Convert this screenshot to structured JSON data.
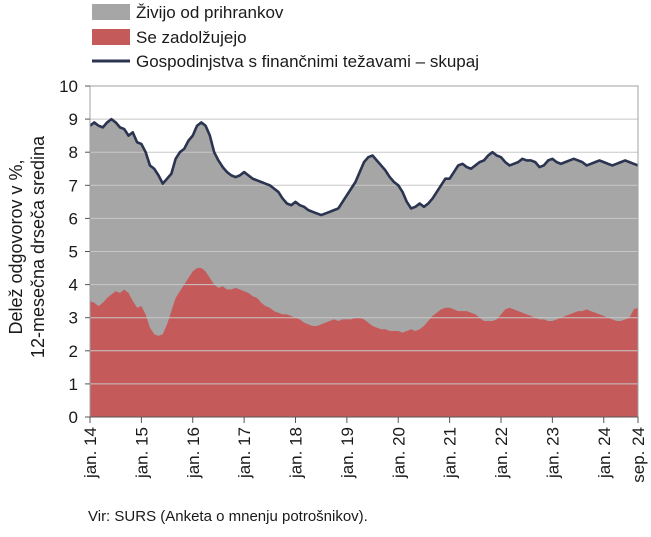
{
  "legend": [
    {
      "label": "Živijo od prihrankov",
      "color": "#a6a6a6",
      "kind": "area"
    },
    {
      "label": "Se zadolžujejo",
      "color": "#c55a5a",
      "kind": "area"
    },
    {
      "label": "Gospodinjstva s finančnimi težavami – skupaj",
      "color": "#2b3450",
      "kind": "line"
    }
  ],
  "source": "Vir: SURS (Anketa o mnenju potrošnikov).",
  "chart_data": {
    "type": "area",
    "ylabel_line1": "Delež odgovorov v %,",
    "ylabel_line2": "12-mesečna drseča sredina",
    "xlabel": "",
    "ylim": [
      0,
      10
    ],
    "yticks": [
      "0",
      "1",
      "2",
      "3",
      "4",
      "5",
      "6",
      "7",
      "8",
      "9",
      "10"
    ],
    "grid": true,
    "legend_position": "top-left",
    "x_tick_labels": [
      {
        "label": "jan. 14",
        "index": 0
      },
      {
        "label": "jan. 15",
        "index": 12
      },
      {
        "label": "jan. 16",
        "index": 24
      },
      {
        "label": "jan. 17",
        "index": 36
      },
      {
        "label": "jan. 18",
        "index": 48
      },
      {
        "label": "jan. 19",
        "index": 60
      },
      {
        "label": "jan. 20",
        "index": 72
      },
      {
        "label": "jan. 21",
        "index": 84
      },
      {
        "label": "jan. 22",
        "index": 96
      },
      {
        "label": "jan. 23",
        "index": 108
      },
      {
        "label": "jan. 24",
        "index": 120
      },
      {
        "label": "sep. 24",
        "index": 128
      }
    ],
    "period": "jan. 2014 – sep. 2024, monthly",
    "series": [
      {
        "name": "Gospodinjstva s finančnimi težavami – skupaj",
        "kind": "line",
        "color": "#2b3450",
        "values": [
          8.8,
          8.9,
          8.8,
          8.75,
          8.9,
          9.0,
          8.9,
          8.75,
          8.7,
          8.5,
          8.6,
          8.3,
          8.25,
          8.0,
          7.6,
          7.5,
          7.3,
          7.05,
          7.2,
          7.35,
          7.8,
          8.0,
          8.1,
          8.35,
          8.5,
          8.8,
          8.9,
          8.8,
          8.5,
          8.0,
          7.75,
          7.55,
          7.4,
          7.3,
          7.25,
          7.3,
          7.4,
          7.3,
          7.2,
          7.15,
          7.1,
          7.05,
          7.0,
          6.9,
          6.8,
          6.6,
          6.45,
          6.4,
          6.5,
          6.4,
          6.35,
          6.25,
          6.2,
          6.15,
          6.1,
          6.15,
          6.2,
          6.25,
          6.3,
          6.5,
          6.7,
          6.9,
          7.1,
          7.4,
          7.7,
          7.85,
          7.9,
          7.75,
          7.6,
          7.45,
          7.25,
          7.1,
          7.0,
          6.8,
          6.5,
          6.3,
          6.35,
          6.45,
          6.35,
          6.45,
          6.6,
          6.8,
          7.0,
          7.2,
          7.2,
          7.4,
          7.6,
          7.65,
          7.55,
          7.5,
          7.6,
          7.7,
          7.75,
          7.9,
          8.0,
          7.9,
          7.85,
          7.7,
          7.6,
          7.65,
          7.7,
          7.8,
          7.75,
          7.75,
          7.7,
          7.55,
          7.6,
          7.75,
          7.8,
          7.7,
          7.65,
          7.7,
          7.75,
          7.8,
          7.75,
          7.7,
          7.6,
          7.65,
          7.7,
          7.75,
          7.7,
          7.65,
          7.6,
          7.65,
          7.7,
          7.75,
          7.7,
          7.65,
          7.6
        ]
      },
      {
        "name": "Se zadolžujejo",
        "kind": "area",
        "color": "#c55a5a",
        "values": [
          3.5,
          3.45,
          3.35,
          3.45,
          3.6,
          3.7,
          3.8,
          3.75,
          3.85,
          3.75,
          3.5,
          3.3,
          3.35,
          3.1,
          2.7,
          2.5,
          2.45,
          2.5,
          2.8,
          3.2,
          3.6,
          3.8,
          4.0,
          4.2,
          4.4,
          4.5,
          4.5,
          4.4,
          4.2,
          4.0,
          3.9,
          3.95,
          3.85,
          3.85,
          3.9,
          3.85,
          3.8,
          3.75,
          3.65,
          3.6,
          3.45,
          3.35,
          3.3,
          3.2,
          3.15,
          3.1,
          3.1,
          3.05,
          3.0,
          2.95,
          2.85,
          2.8,
          2.75,
          2.75,
          2.8,
          2.85,
          2.9,
          2.95,
          2.9,
          2.95,
          2.95,
          2.95,
          3.0,
          3.0,
          2.95,
          2.85,
          2.75,
          2.7,
          2.65,
          2.65,
          2.6,
          2.6,
          2.6,
          2.55,
          2.6,
          2.65,
          2.6,
          2.65,
          2.75,
          2.9,
          3.05,
          3.15,
          3.25,
          3.3,
          3.3,
          3.25,
          3.2,
          3.2,
          3.2,
          3.15,
          3.1,
          3.0,
          2.9,
          2.9,
          2.9,
          2.95,
          3.1,
          3.25,
          3.3,
          3.25,
          3.2,
          3.15,
          3.1,
          3.05,
          3.0,
          2.95,
          2.95,
          2.9,
          2.9,
          2.95,
          3.0,
          3.05,
          3.1,
          3.15,
          3.2,
          3.2,
          3.25,
          3.2,
          3.15,
          3.1,
          3.05,
          3.0,
          2.95,
          2.9,
          2.9,
          2.95,
          3.0,
          3.25,
          3.3
        ]
      }
    ]
  }
}
